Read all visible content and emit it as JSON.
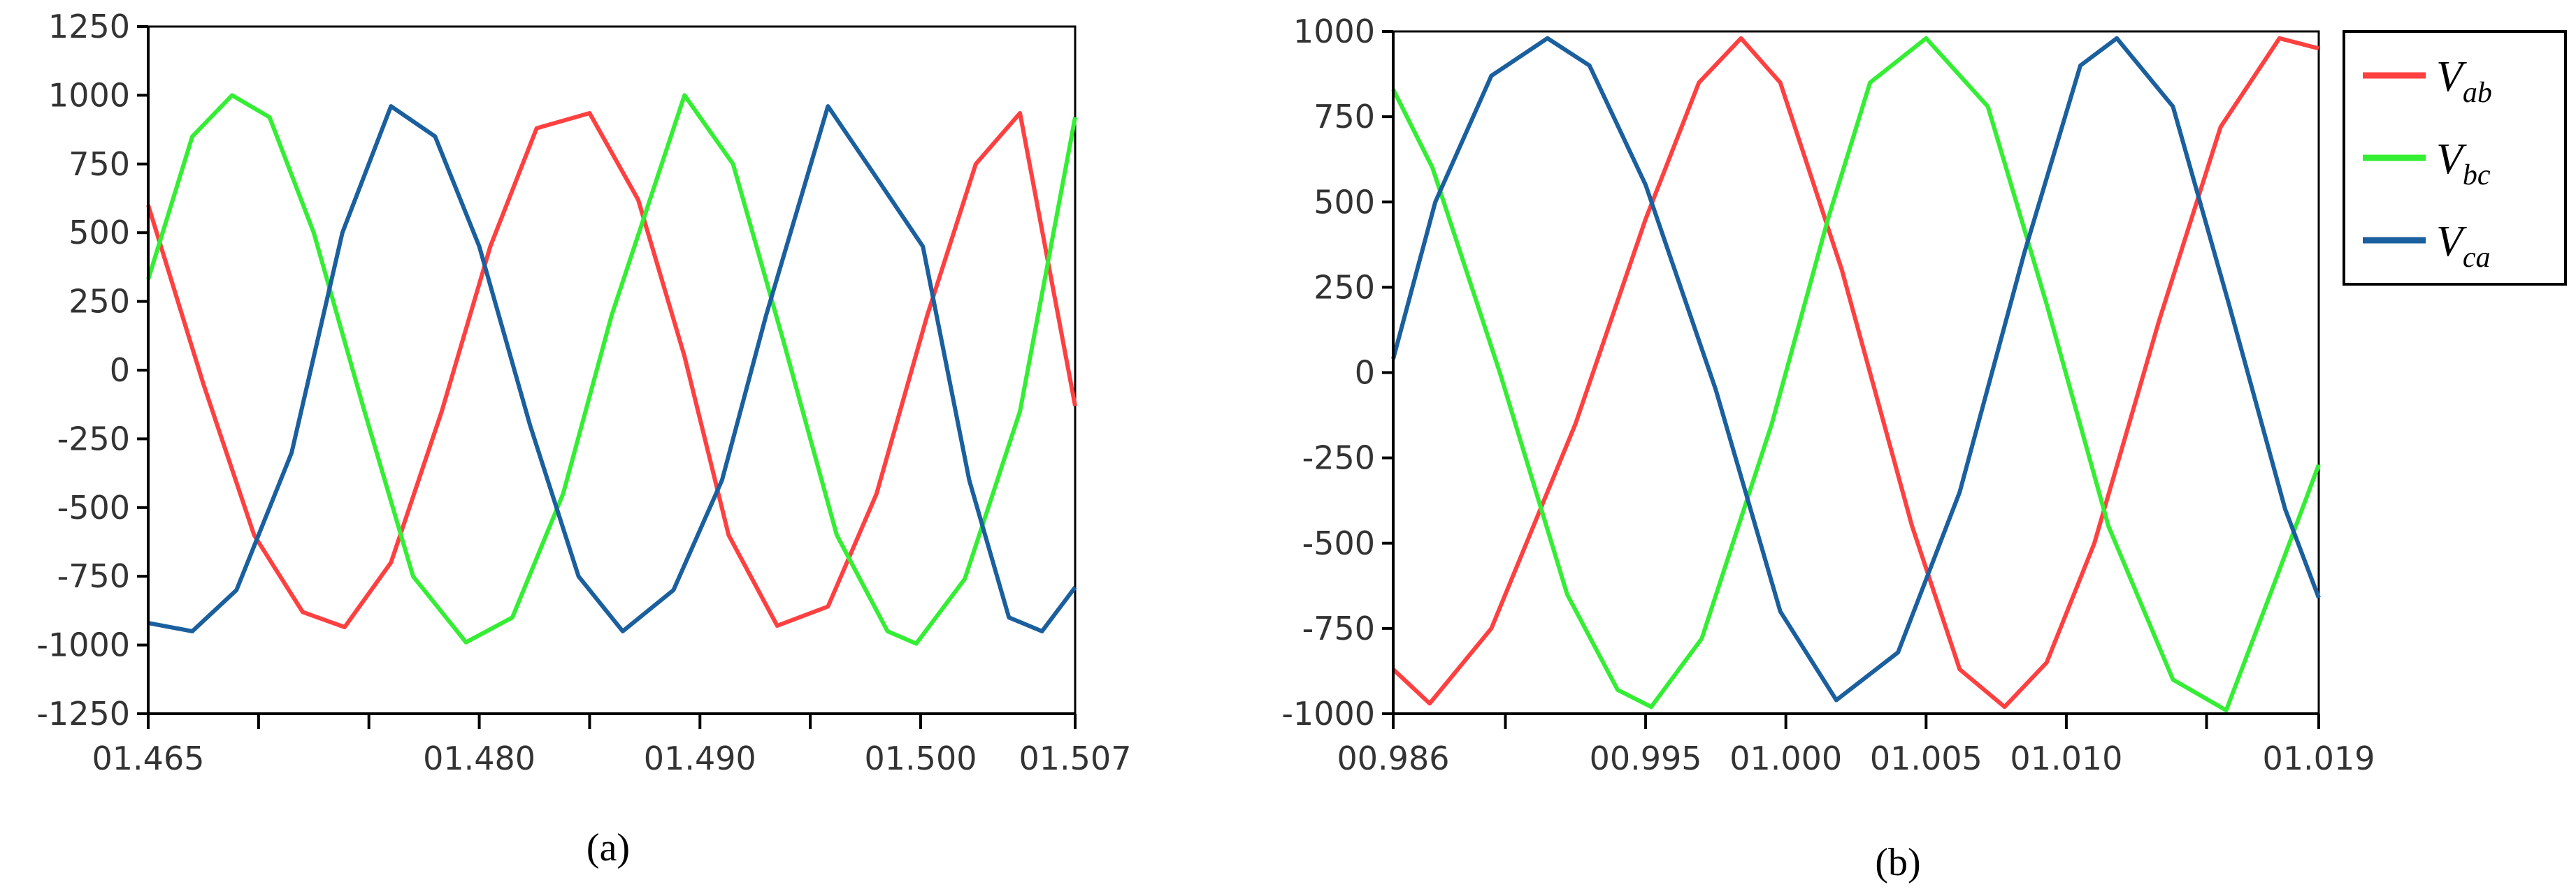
{
  "colors": {
    "ab": "#ff4040",
    "bc": "#33ee33",
    "ca": "#1a5f9e"
  },
  "legend": [
    {
      "key": "ab",
      "main": "V",
      "sub": "ab"
    },
    {
      "key": "bc",
      "main": "V",
      "sub": "bc"
    },
    {
      "key": "ca",
      "main": "V",
      "sub": "ca"
    }
  ],
  "chart_data": [
    {
      "type": "line",
      "caption": "(a)",
      "xlim": [
        1.465,
        1.507
      ],
      "ylim": [
        -1250,
        1250
      ],
      "yticks": [
        -1250,
        -1000,
        -750,
        -500,
        -250,
        0,
        250,
        500,
        750,
        1000,
        1250
      ],
      "ytick_labels": [
        "-1250",
        "-1000",
        "-750",
        "-500",
        "-250",
        "0",
        "250",
        "500",
        "750",
        "1000",
        "1250"
      ],
      "xticks": [
        1.465,
        1.47,
        1.475,
        1.48,
        1.485,
        1.49,
        1.495,
        1.5,
        1.507
      ],
      "xtick_labels": [
        "01.465",
        "",
        "",
        "01.480",
        "",
        "01.490",
        "",
        "01.500",
        "01.507"
      ],
      "grid": false,
      "series": [
        {
          "key": "ab",
          "x": [
            1.465,
            1.4675,
            1.4698,
            1.472,
            1.4739,
            1.476,
            1.4783,
            1.4805,
            1.4826,
            1.485,
            1.4872,
            1.4893,
            1.4913,
            1.4935,
            1.4958,
            1.498,
            1.5003,
            1.5025,
            1.5045,
            1.507
          ],
          "y": [
            600,
            -50,
            -600,
            -880,
            -935,
            -700,
            -150,
            450,
            880,
            935,
            620,
            50,
            -600,
            -930,
            -860,
            -450,
            200,
            750,
            935,
            -130
          ]
        },
        {
          "key": "bc",
          "x": [
            1.465,
            1.467,
            1.4688,
            1.4705,
            1.4725,
            1.4748,
            1.477,
            1.4794,
            1.4815,
            1.4838,
            1.486,
            1.4893,
            1.4915,
            1.4938,
            1.4962,
            1.4985,
            1.4998,
            1.502,
            1.5045,
            1.507
          ],
          "y": [
            330,
            850,
            1000,
            920,
            500,
            -150,
            -750,
            -990,
            -900,
            -450,
            200,
            1000,
            750,
            100,
            -600,
            -950,
            -995,
            -760,
            -150,
            920
          ]
        },
        {
          "key": "ca",
          "x": [
            1.465,
            1.467,
            1.469,
            1.4715,
            1.4738,
            1.476,
            1.478,
            1.48,
            1.4823,
            1.4845,
            1.4865,
            1.4888,
            1.491,
            1.493,
            1.4958,
            1.498,
            1.5001,
            1.5022,
            1.504,
            1.5055,
            1.507
          ],
          "y": [
            -920,
            -950,
            -800,
            -300,
            500,
            960,
            850,
            450,
            -200,
            -750,
            -950,
            -800,
            -400,
            200,
            960,
            700,
            450,
            -400,
            -900,
            -950,
            -790
          ]
        }
      ]
    },
    {
      "type": "line",
      "caption": "(b)",
      "xlim": [
        0.986,
        1.019
      ],
      "ylim": [
        -1000,
        1000
      ],
      "yticks": [
        -1000,
        -750,
        -500,
        -250,
        0,
        250,
        500,
        750,
        1000
      ],
      "ytick_labels": [
        "-1000",
        "-750",
        "-500",
        "-250",
        "0",
        "250",
        "500",
        "750",
        "1000"
      ],
      "xticks": [
        0.986,
        0.99,
        0.995,
        1.0,
        1.005,
        1.01,
        1.015,
        1.019
      ],
      "xtick_labels": [
        "00.986",
        "",
        "00.995",
        "01.000",
        "01.005",
        "01.010",
        "",
        "01.019"
      ],
      "grid": false,
      "series": [
        {
          "key": "ab",
          "x": [
            0.986,
            0.9873,
            0.9895,
            0.9925,
            0.995,
            0.9969,
            0.9984,
            0.9998,
            1.002,
            1.0045,
            1.0062,
            1.0078,
            1.0093,
            1.011,
            1.0133,
            1.0155,
            1.0176,
            1.019
          ],
          "y": [
            -870,
            -970,
            -750,
            -150,
            450,
            850,
            980,
            850,
            300,
            -450,
            -870,
            -980,
            -850,
            -500,
            150,
            720,
            980,
            950
          ]
        },
        {
          "key": "bc",
          "x": [
            0.986,
            0.9874,
            0.9898,
            0.9922,
            0.994,
            0.9952,
            0.997,
            0.9995,
            1.0015,
            1.003,
            1.005,
            1.0072,
            1.0093,
            1.0115,
            1.0138,
            1.0157,
            1.0175,
            1.019
          ],
          "y": [
            830,
            600,
            0,
            -650,
            -930,
            -980,
            -780,
            -150,
            450,
            850,
            980,
            780,
            200,
            -450,
            -900,
            -990,
            -600,
            -270
          ]
        },
        {
          "key": "ca",
          "x": [
            0.986,
            0.9875,
            0.9895,
            0.9915,
            0.993,
            0.995,
            0.9975,
            0.9998,
            1.0018,
            1.004,
            1.0062,
            1.0085,
            1.0105,
            1.0118,
            1.0138,
            1.0158,
            1.0178,
            1.019
          ],
          "y": [
            40,
            500,
            870,
            980,
            900,
            550,
            -50,
            -700,
            -960,
            -820,
            -350,
            350,
            900,
            980,
            780,
            200,
            -400,
            -660
          ]
        }
      ]
    }
  ]
}
